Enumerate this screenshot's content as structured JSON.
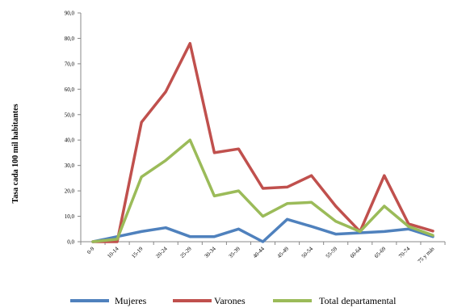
{
  "chart_data": {
    "type": "line",
    "title": "",
    "xlabel": "",
    "ylabel": "Tasa cada 100 mil habitantes",
    "ylim": [
      0,
      90
    ],
    "yticks": [
      "0,0",
      "10,0",
      "20,0",
      "30,0",
      "40,0",
      "50,0",
      "60,0",
      "70,0",
      "80,0",
      "90,0"
    ],
    "categories": [
      "0-9",
      "10-14",
      "15-19",
      "20-24",
      "25-29",
      "30-34",
      "35-39",
      "40-44",
      "45-49",
      "50-54",
      "55-59",
      "60-64",
      "65-69",
      "70-74",
      "75 y más"
    ],
    "series": [
      {
        "name": "Mujeres",
        "color": "#4f81bd",
        "values": [
          0,
          2,
          4,
          5.5,
          2,
          2,
          5,
          0,
          8.8,
          6,
          3,
          3.5,
          4,
          5,
          2
        ]
      },
      {
        "name": "Varones",
        "color": "#c0504d",
        "values": [
          0,
          0,
          47,
          59,
          78,
          35,
          36.5,
          21,
          21.5,
          26,
          14,
          4,
          26,
          7,
          4.2
        ]
      },
      {
        "name": "Total departamental",
        "color": "#9bbb59",
        "values": [
          0,
          1,
          25.5,
          32,
          40,
          18,
          20,
          10,
          15,
          15.5,
          8,
          4,
          14,
          6,
          2.5
        ]
      }
    ],
    "grid": false,
    "legend": "bottom"
  }
}
